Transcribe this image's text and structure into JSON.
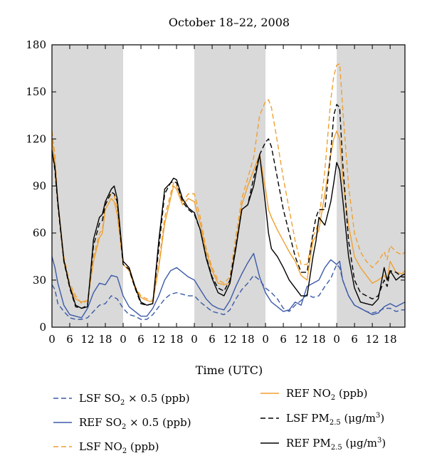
{
  "chart_data": {
    "type": "line",
    "title": "October 18–22, 2008",
    "xlabel": "Time (UTC)",
    "ylabel": "",
    "xlim": [
      0,
      119
    ],
    "ylim": [
      0,
      180
    ],
    "yticks": [
      0,
      30,
      60,
      90,
      120,
      150,
      180
    ],
    "xtick_labels": [
      "0",
      "6",
      "12",
      "18",
      "0",
      "6",
      "12",
      "18",
      "0",
      "6",
      "12",
      "18",
      "0",
      "6",
      "12",
      "18",
      "0",
      "6",
      "12",
      "18"
    ],
    "night_shading": [
      [
        0,
        24
      ],
      [
        48,
        72
      ],
      [
        96,
        119
      ]
    ],
    "legend_placement": "bottom",
    "series": [
      {
        "name": "LSF SO₂ × 0.5 (ppb)",
        "color": "#3b5aa8",
        "dash": "dashed",
        "x": [
          0,
          1,
          2,
          4,
          6,
          8,
          10,
          12,
          14,
          16,
          18,
          20,
          22,
          24,
          26,
          28,
          30,
          32,
          34,
          36,
          38,
          40,
          42,
          44,
          46,
          48,
          50,
          52,
          54,
          56,
          58,
          60,
          62,
          64,
          66,
          68,
          70,
          72,
          74,
          76,
          78,
          80,
          82,
          84,
          86,
          88,
          90,
          92,
          94,
          96,
          97,
          98,
          100,
          102,
          104,
          106,
          108,
          110,
          112,
          114,
          116,
          118,
          119
        ],
        "y": [
          27,
          24,
          15,
          10,
          6,
          5,
          5,
          6,
          10,
          14,
          15,
          20,
          18,
          12,
          8,
          7,
          5,
          5,
          8,
          13,
          18,
          21,
          22,
          21,
          20,
          20,
          16,
          13,
          10,
          9,
          8,
          11,
          18,
          24,
          28,
          33,
          30,
          25,
          22,
          18,
          12,
          10,
          14,
          17,
          21,
          19,
          20,
          26,
          31,
          40,
          38,
          30,
          20,
          14,
          12,
          10,
          9,
          10,
          12,
          12,
          10,
          11,
          11
        ]
      },
      {
        "name": "REF SO₂ × 0.5 (ppb)",
        "color": "#3b5aa8",
        "dash": "solid",
        "x": [
          0,
          1,
          2,
          4,
          6,
          8,
          10,
          12,
          14,
          16,
          18,
          20,
          22,
          24,
          26,
          28,
          30,
          32,
          34,
          36,
          38,
          40,
          42,
          44,
          46,
          48,
          50,
          52,
          54,
          56,
          58,
          60,
          62,
          64,
          66,
          68,
          70,
          72,
          74,
          76,
          78,
          80,
          82,
          84,
          86,
          88,
          90,
          92,
          94,
          96,
          97,
          98,
          100,
          102,
          104,
          106,
          108,
          110,
          112,
          114,
          116,
          118,
          119
        ],
        "y": [
          45,
          38,
          28,
          14,
          8,
          7,
          6,
          12,
          22,
          28,
          27,
          33,
          32,
          20,
          13,
          10,
          7,
          7,
          12,
          20,
          30,
          36,
          38,
          35,
          32,
          30,
          24,
          18,
          14,
          12,
          11,
          17,
          26,
          34,
          41,
          47,
          32,
          22,
          16,
          13,
          10,
          11,
          16,
          14,
          26,
          28,
          30,
          38,
          43,
          40,
          42,
          30,
          20,
          14,
          12,
          10,
          8,
          9,
          13,
          15,
          13,
          15,
          16
        ]
      },
      {
        "name": "LSF NO₂ (ppb)",
        "color": "#f0a030",
        "dash": "dashed",
        "x": [
          0,
          1,
          2,
          4,
          6,
          8,
          10,
          12,
          14,
          16,
          17,
          18,
          20,
          21,
          22,
          24,
          26,
          28,
          30,
          32,
          34,
          36,
          38,
          40,
          41,
          42,
          44,
          46,
          48,
          50,
          52,
          54,
          56,
          58,
          60,
          62,
          64,
          66,
          68,
          70,
          72,
          73,
          74,
          76,
          78,
          80,
          82,
          84,
          86,
          88,
          89,
          90,
          92,
          94,
          95,
          96,
          97,
          98,
          100,
          102,
          104,
          106,
          108,
          110,
          112,
          113,
          114,
          116,
          118,
          119
        ],
        "y": [
          125,
          110,
          80,
          45,
          28,
          20,
          15,
          17,
          45,
          60,
          62,
          78,
          85,
          84,
          75,
          42,
          38,
          26,
          20,
          18,
          17,
          40,
          70,
          85,
          92,
          90,
          80,
          85,
          85,
          70,
          50,
          38,
          30,
          28,
          32,
          58,
          82,
          95,
          108,
          135,
          144,
          145,
          140,
          118,
          95,
          75,
          55,
          40,
          40,
          58,
          62,
          68,
          100,
          145,
          160,
          167,
          168,
          140,
          90,
          60,
          48,
          42,
          38,
          42,
          48,
          43,
          52,
          48,
          46,
          48
        ]
      },
      {
        "name": "REF NO₂ (ppb)",
        "color": "#f0a030",
        "dash": "solid",
        "x": [
          0,
          1,
          2,
          4,
          6,
          8,
          10,
          12,
          14,
          16,
          17,
          18,
          20,
          21,
          22,
          24,
          26,
          28,
          30,
          32,
          34,
          36,
          38,
          40,
          41,
          42,
          44,
          46,
          48,
          50,
          52,
          54,
          56,
          58,
          60,
          62,
          64,
          66,
          68,
          70,
          72,
          73,
          74,
          76,
          78,
          80,
          82,
          84,
          86,
          88,
          89,
          90,
          92,
          94,
          95,
          96,
          97,
          98,
          100,
          102,
          104,
          106,
          108,
          110,
          112,
          113,
          114,
          116,
          118,
          119
        ],
        "y": [
          120,
          105,
          78,
          42,
          26,
          18,
          16,
          17,
          42,
          57,
          60,
          75,
          82,
          80,
          72,
          40,
          36,
          25,
          19,
          17,
          16,
          38,
          66,
          82,
          90,
          88,
          78,
          82,
          80,
          66,
          48,
          36,
          28,
          27,
          28,
          52,
          78,
          90,
          100,
          110,
          88,
          75,
          70,
          62,
          55,
          48,
          42,
          33,
          30,
          55,
          58,
          62,
          85,
          110,
          120,
          125,
          120,
          95,
          65,
          45,
          38,
          33,
          28,
          30,
          33,
          30,
          42,
          35,
          34,
          36
        ]
      },
      {
        "name": "LSF PM₂.₅ (μg/m³)",
        "color": "#000000",
        "dash": "dashed",
        "x": [
          0,
          1,
          2,
          4,
          6,
          8,
          10,
          12,
          14,
          16,
          17,
          18,
          20,
          21,
          22,
          24,
          26,
          28,
          30,
          32,
          34,
          36,
          38,
          40,
          41,
          42,
          44,
          46,
          48,
          50,
          52,
          54,
          56,
          58,
          60,
          62,
          64,
          66,
          68,
          70,
          72,
          73,
          74,
          76,
          78,
          80,
          82,
          84,
          86,
          88,
          89,
          90,
          92,
          94,
          95,
          96,
          97,
          98,
          100,
          102,
          104,
          106,
          108,
          110,
          112,
          113,
          114,
          116,
          118,
          119
        ],
        "y": [
          113,
          100,
          78,
          42,
          25,
          13,
          12,
          14,
          52,
          66,
          68,
          78,
          86,
          85,
          80,
          40,
          37,
          25,
          15,
          14,
          15,
          50,
          85,
          92,
          93,
          92,
          80,
          75,
          72,
          62,
          45,
          32,
          25,
          23,
          30,
          52,
          75,
          78,
          95,
          110,
          118,
          120,
          115,
          95,
          75,
          60,
          45,
          35,
          35,
          60,
          70,
          75,
          75,
          112,
          135,
          142,
          140,
          105,
          55,
          30,
          22,
          20,
          18,
          20,
          30,
          26,
          36,
          35,
          32,
          32
        ]
      },
      {
        "name": "REF PM₂.₅ (μg/m³)",
        "color": "#000000",
        "dash": "solid",
        "x": [
          0,
          1,
          2,
          4,
          6,
          8,
          10,
          12,
          14,
          16,
          17,
          18,
          20,
          21,
          22,
          24,
          26,
          28,
          30,
          32,
          34,
          36,
          38,
          40,
          41,
          42,
          44,
          46,
          48,
          50,
          52,
          54,
          56,
          58,
          60,
          62,
          64,
          66,
          68,
          70,
          72,
          73,
          74,
          76,
          78,
          80,
          82,
          84,
          86,
          88,
          89,
          90,
          92,
          94,
          95,
          96,
          97,
          98,
          100,
          102,
          104,
          106,
          108,
          110,
          112,
          113,
          114,
          116,
          118,
          119
        ],
        "y": [
          112,
          102,
          80,
          43,
          26,
          14,
          12,
          13,
          56,
          70,
          72,
          80,
          88,
          90,
          82,
          42,
          38,
          26,
          16,
          14,
          15,
          55,
          88,
          92,
          95,
          94,
          82,
          76,
          73,
          62,
          44,
          31,
          22,
          20,
          28,
          50,
          75,
          78,
          90,
          110,
          78,
          60,
          50,
          45,
          38,
          30,
          25,
          20,
          20,
          45,
          55,
          70,
          65,
          80,
          92,
          105,
          100,
          82,
          45,
          25,
          16,
          15,
          14,
          18,
          38,
          30,
          36,
          30,
          33,
          34
        ]
      }
    ],
    "legend": [
      {
        "prefix": "LSF SO",
        "sub": "2",
        "suffix": " × 0.5 (ppb)"
      },
      {
        "prefix": "REF SO",
        "sub": "2",
        "suffix": " × 0.5 (ppb)"
      },
      {
        "prefix": "LSF NO",
        "sub": "2",
        "suffix": " (ppb)"
      },
      {
        "prefix": "REF NO",
        "sub": "2",
        "suffix": " (ppb)"
      },
      {
        "prefix": "LSF PM",
        "sub": "2.5",
        "suffix": " (μg/m",
        "sup": "3",
        "end": ")"
      },
      {
        "prefix": "REF PM",
        "sub": "2.5",
        "suffix": " (μg/m",
        "sup": "3",
        "end": ")"
      }
    ]
  }
}
